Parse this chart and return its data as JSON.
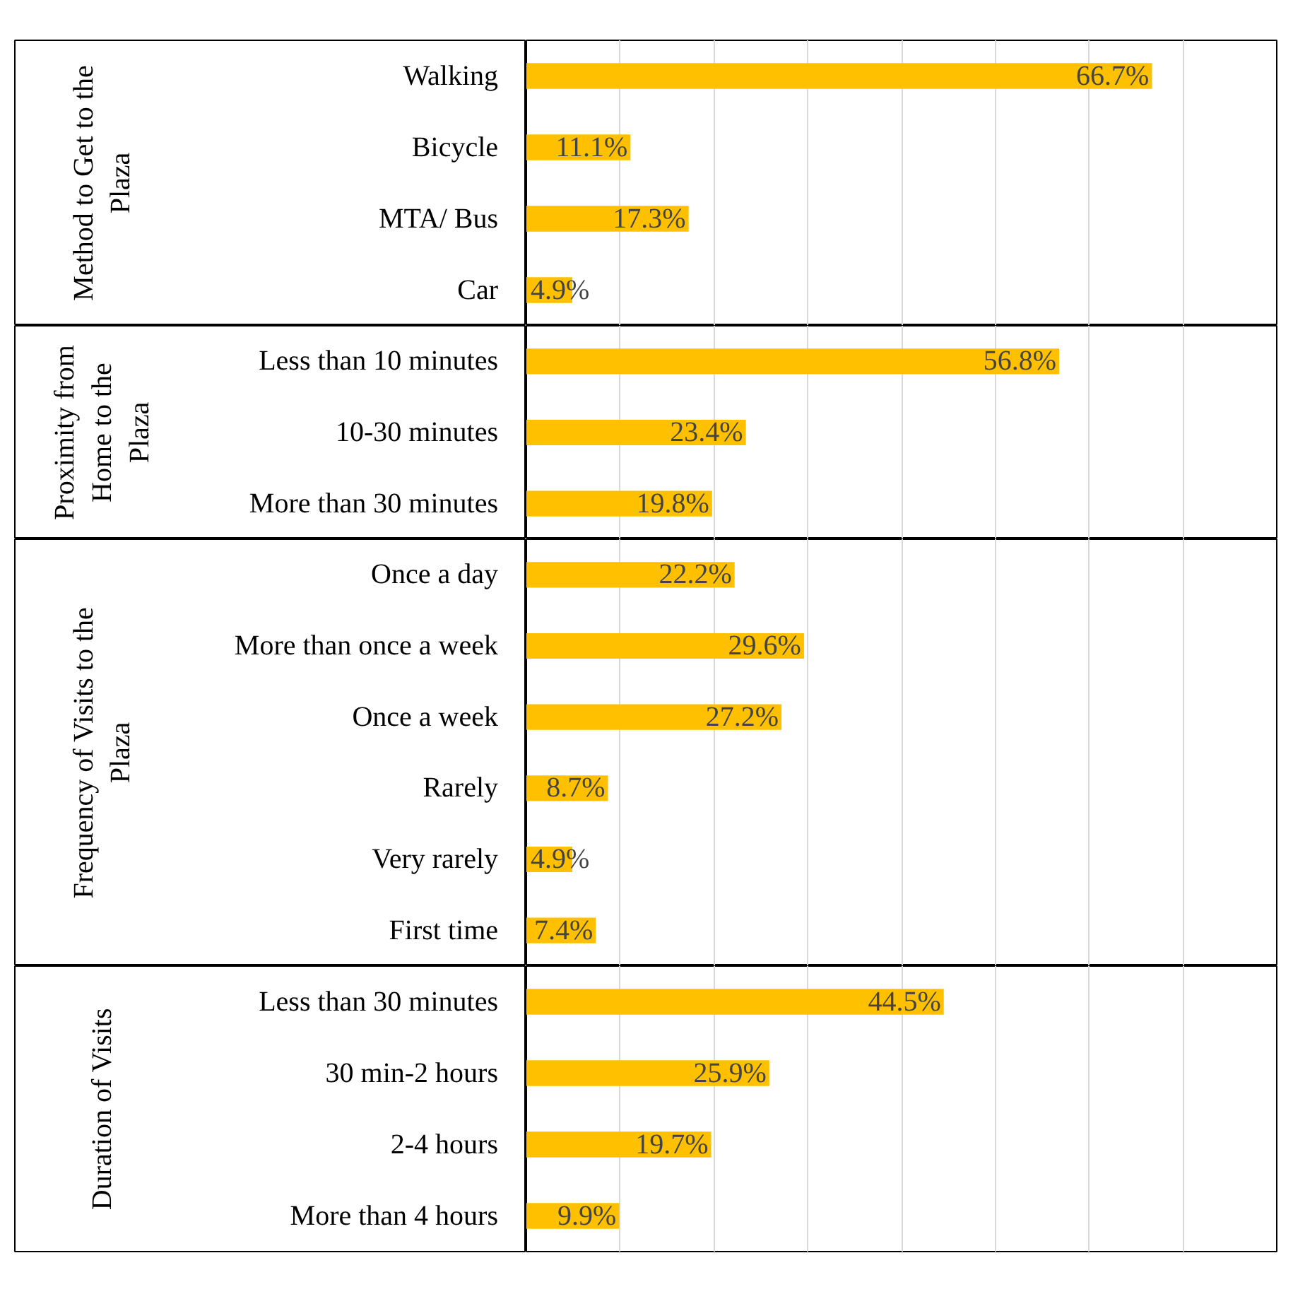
{
  "chart_data": [
    {
      "type": "bar",
      "orientation": "horizontal",
      "ylabel": "Method to Get to the Plaza",
      "categories": [
        "Walking",
        "Bicycle",
        "MTA/ Bus",
        "Car"
      ],
      "values": [
        66.7,
        11.1,
        17.3,
        4.9
      ],
      "value_labels": [
        "66.7%",
        "11.1%",
        "17.3%",
        "4.9%"
      ],
      "color": "#ffc000",
      "xlim": [
        0,
        80
      ],
      "xticks": [
        {
          "value": 0,
          "label": null
        },
        {
          "value": 10,
          "label": null
        },
        {
          "value": 20,
          "label": null
        },
        {
          "value": 30,
          "label": null
        },
        {
          "value": 40,
          "label": null
        },
        {
          "value": 50,
          "label": null
        },
        {
          "value": 60,
          "label": null
        },
        {
          "value": 70,
          "label": null
        },
        {
          "value": 80,
          "label": null
        }
      ],
      "grid": "x",
      "tick_labels": "y"
    },
    {
      "type": "bar",
      "orientation": "horizontal",
      "ylabel": "Proximity from Home to the Plaza",
      "categories": [
        "Less than 10 minutes",
        "10-30 minutes",
        "More than 30 minutes"
      ],
      "values": [
        56.8,
        23.4,
        19.8
      ],
      "value_labels": [
        "56.8%",
        "23.4%",
        "19.8%"
      ],
      "color": "#ffc000",
      "xlim": [
        0,
        80
      ],
      "xticks": [
        {
          "value": 0,
          "label": null
        },
        {
          "value": 10,
          "label": null
        },
        {
          "value": 20,
          "label": null
        },
        {
          "value": 30,
          "label": null
        },
        {
          "value": 40,
          "label": null
        },
        {
          "value": 50,
          "label": null
        },
        {
          "value": 60,
          "label": null
        },
        {
          "value": 70,
          "label": null
        },
        {
          "value": 80,
          "label": null
        }
      ],
      "grid": "x",
      "tick_labels": "y"
    },
    {
      "type": "bar",
      "orientation": "horizontal",
      "ylabel": "Frequency of Visits to the Plaza",
      "categories": [
        "Once a day",
        "More than once a week",
        "Once a week",
        "Rarely",
        "Very rarely",
        "First time"
      ],
      "values": [
        22.2,
        29.6,
        27.2,
        8.7,
        4.9,
        7.4
      ],
      "value_labels": [
        "22.2%",
        "29.6%",
        "27.2%",
        "8.7%",
        "4.9%",
        "7.4%"
      ],
      "color": "#ffc000",
      "xlim": [
        0,
        80
      ],
      "xticks": [
        {
          "value": 0,
          "label": null
        },
        {
          "value": 10,
          "label": null
        },
        {
          "value": 20,
          "label": null
        },
        {
          "value": 30,
          "label": null
        },
        {
          "value": 40,
          "label": null
        },
        {
          "value": 50,
          "label": null
        },
        {
          "value": 60,
          "label": null
        },
        {
          "value": 70,
          "label": null
        },
        {
          "value": 80,
          "label": null
        }
      ],
      "grid": "x",
      "tick_labels": "y"
    },
    {
      "type": "bar",
      "orientation": "horizontal",
      "ylabel": "Duration of Visits",
      "categories": [
        "Less than 30 minutes",
        "30 min-2 hours",
        "2-4 hours",
        "More than 4 hours"
      ],
      "values": [
        44.5,
        25.9,
        19.7,
        9.9
      ],
      "value_labels": [
        "44.5%",
        "25.9%",
        "19.7%",
        "9.9%"
      ],
      "color": "#ffc000",
      "xlim": [
        0,
        80
      ],
      "xticks": [
        {
          "value": 0,
          "label": null
        },
        {
          "value": 10,
          "label": null
        },
        {
          "value": 20,
          "label": null
        },
        {
          "value": 30,
          "label": null
        },
        {
          "value": 40,
          "label": null
        },
        {
          "value": 50,
          "label": null
        },
        {
          "value": 60,
          "label": null
        },
        {
          "value": 70,
          "label": null
        },
        {
          "value": 80,
          "label": null
        }
      ],
      "grid": "x",
      "tick_labels": "y"
    }
  ]
}
